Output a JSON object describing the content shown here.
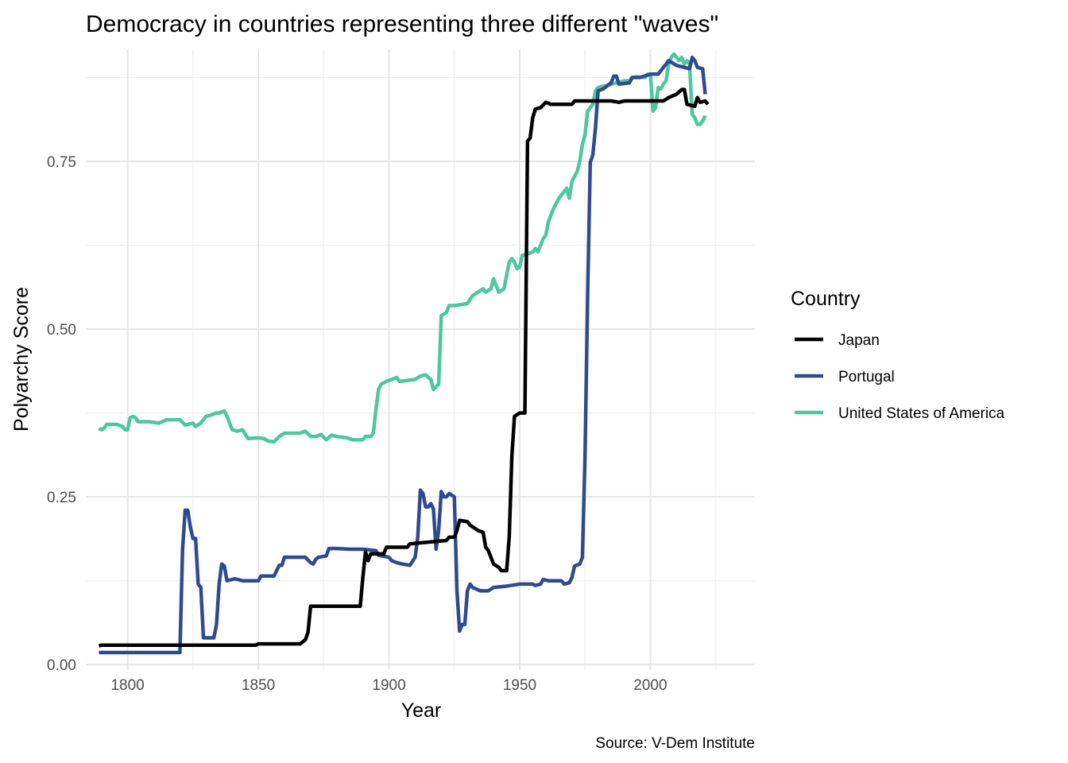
{
  "chart_data": {
    "type": "line",
    "title": "Democracy in countries representing three different \"waves\"",
    "xlabel": "Year",
    "ylabel": "Polyarchy Score",
    "caption": "Source: V-Dem Institute",
    "xlim": [
      1784,
      2040
    ],
    "ylim": [
      -0.008,
      0.917
    ],
    "x_ticks": [
      1800,
      1850,
      1900,
      1950,
      2000
    ],
    "x_tick_labels": [
      "1800",
      "1850",
      "1900",
      "1950",
      "2000"
    ],
    "y_ticks": [
      0,
      0.25,
      0.5,
      0.75
    ],
    "y_tick_labels": [
      "0.00",
      "0.25",
      "0.50",
      "0.75"
    ],
    "grid": true,
    "legend": {
      "title": "Country",
      "position": "right"
    },
    "series": [
      {
        "name": "Japan",
        "color": "#000000",
        "points": [
          [
            1789,
            0.028
          ],
          [
            1790,
            0.029
          ],
          [
            1849,
            0.029
          ],
          [
            1850,
            0.031
          ],
          [
            1866,
            0.031
          ],
          [
            1868,
            0.037
          ],
          [
            1869,
            0.048
          ],
          [
            1870,
            0.087
          ],
          [
            1889,
            0.087
          ],
          [
            1890,
            0.13
          ],
          [
            1891,
            0.168
          ],
          [
            1892,
            0.155
          ],
          [
            1893,
            0.165
          ],
          [
            1898,
            0.165
          ],
          [
            1899,
            0.175
          ],
          [
            1907,
            0.175
          ],
          [
            1908,
            0.18
          ],
          [
            1922,
            0.185
          ],
          [
            1923,
            0.19
          ],
          [
            1925,
            0.19
          ],
          [
            1926,
            0.2
          ],
          [
            1927,
            0.215
          ],
          [
            1930,
            0.213
          ],
          [
            1931,
            0.208
          ],
          [
            1934,
            0.2
          ],
          [
            1936,
            0.197
          ],
          [
            1937,
            0.175
          ],
          [
            1938,
            0.17
          ],
          [
            1940,
            0.15
          ],
          [
            1942,
            0.145
          ],
          [
            1943,
            0.14
          ],
          [
            1945,
            0.14
          ],
          [
            1946,
            0.19
          ],
          [
            1947,
            0.31
          ],
          [
            1948,
            0.37
          ],
          [
            1950,
            0.375
          ],
          [
            1952,
            0.375
          ],
          [
            1953,
            0.78
          ],
          [
            1954,
            0.785
          ],
          [
            1955,
            0.815
          ],
          [
            1956,
            0.828
          ],
          [
            1958,
            0.83
          ],
          [
            1960,
            0.838
          ],
          [
            1962,
            0.835
          ],
          [
            1970,
            0.835
          ],
          [
            1971,
            0.84
          ],
          [
            1985,
            0.84
          ],
          [
            1988,
            0.838
          ],
          [
            1990,
            0.84
          ],
          [
            2005,
            0.84
          ],
          [
            2007,
            0.845
          ],
          [
            2010,
            0.85
          ],
          [
            2012,
            0.857
          ],
          [
            2013,
            0.857
          ],
          [
            2014,
            0.835
          ],
          [
            2017,
            0.832
          ],
          [
            2018,
            0.845
          ],
          [
            2019,
            0.838
          ],
          [
            2021,
            0.84
          ],
          [
            2022,
            0.835
          ]
        ]
      },
      {
        "name": "Portugal",
        "color": "#2f4b8f",
        "points": [
          [
            1789,
            0.018
          ],
          [
            1820,
            0.018
          ],
          [
            1821,
            0.17
          ],
          [
            1822,
            0.23
          ],
          [
            1823,
            0.23
          ],
          [
            1824,
            0.205
          ],
          [
            1825,
            0.188
          ],
          [
            1826,
            0.188
          ],
          [
            1827,
            0.12
          ],
          [
            1828,
            0.115
          ],
          [
            1829,
            0.04
          ],
          [
            1833,
            0.04
          ],
          [
            1834,
            0.06
          ],
          [
            1835,
            0.12
          ],
          [
            1836,
            0.15
          ],
          [
            1837,
            0.147
          ],
          [
            1838,
            0.125
          ],
          [
            1841,
            0.128
          ],
          [
            1844,
            0.125
          ],
          [
            1847,
            0.125
          ],
          [
            1850,
            0.125
          ],
          [
            1851,
            0.132
          ],
          [
            1856,
            0.132
          ],
          [
            1858,
            0.148
          ],
          [
            1859,
            0.148
          ],
          [
            1860,
            0.16
          ],
          [
            1868,
            0.16
          ],
          [
            1870,
            0.152
          ],
          [
            1871,
            0.15
          ],
          [
            1872,
            0.157
          ],
          [
            1873,
            0.16
          ],
          [
            1876,
            0.162
          ],
          [
            1877,
            0.173
          ],
          [
            1880,
            0.173
          ],
          [
            1885,
            0.172
          ],
          [
            1890,
            0.172
          ],
          [
            1895,
            0.17
          ],
          [
            1896,
            0.163
          ],
          [
            1900,
            0.16
          ],
          [
            1901,
            0.155
          ],
          [
            1903,
            0.152
          ],
          [
            1905,
            0.15
          ],
          [
            1908,
            0.148
          ],
          [
            1910,
            0.16
          ],
          [
            1911,
            0.19
          ],
          [
            1912,
            0.26
          ],
          [
            1913,
            0.255
          ],
          [
            1914,
            0.235
          ],
          [
            1915,
            0.235
          ],
          [
            1916,
            0.24
          ],
          [
            1917,
            0.232
          ],
          [
            1918,
            0.172
          ],
          [
            1919,
            0.2
          ],
          [
            1920,
            0.258
          ],
          [
            1921,
            0.25
          ],
          [
            1922,
            0.25
          ],
          [
            1923,
            0.255
          ],
          [
            1925,
            0.25
          ],
          [
            1926,
            0.11
          ],
          [
            1927,
            0.05
          ],
          [
            1928,
            0.06
          ],
          [
            1929,
            0.06
          ],
          [
            1930,
            0.11
          ],
          [
            1931,
            0.12
          ],
          [
            1932,
            0.115
          ],
          [
            1935,
            0.11
          ],
          [
            1938,
            0.11
          ],
          [
            1940,
            0.115
          ],
          [
            1945,
            0.117
          ],
          [
            1950,
            0.12
          ],
          [
            1955,
            0.12
          ],
          [
            1956,
            0.118
          ],
          [
            1958,
            0.12
          ],
          [
            1959,
            0.127
          ],
          [
            1961,
            0.125
          ],
          [
            1966,
            0.125
          ],
          [
            1967,
            0.12
          ],
          [
            1969,
            0.122
          ],
          [
            1970,
            0.13
          ],
          [
            1971,
            0.147
          ],
          [
            1973,
            0.15
          ],
          [
            1974,
            0.16
          ],
          [
            1975,
            0.31
          ],
          [
            1976,
            0.55
          ],
          [
            1977,
            0.748
          ],
          [
            1978,
            0.76
          ],
          [
            1979,
            0.8
          ],
          [
            1980,
            0.855
          ],
          [
            1982,
            0.858
          ],
          [
            1985,
            0.867
          ],
          [
            1986,
            0.877
          ],
          [
            1987,
            0.877
          ],
          [
            1988,
            0.865
          ],
          [
            1992,
            0.867
          ],
          [
            1993,
            0.875
          ],
          [
            1996,
            0.875
          ],
          [
            2000,
            0.88
          ],
          [
            2003,
            0.88
          ],
          [
            2005,
            0.89
          ],
          [
            2007,
            0.9
          ],
          [
            2010,
            0.893
          ],
          [
            2015,
            0.888
          ],
          [
            2016,
            0.905
          ],
          [
            2017,
            0.9
          ],
          [
            2018,
            0.89
          ],
          [
            2019,
            0.889
          ],
          [
            2020,
            0.888
          ],
          [
            2021,
            0.85
          ]
        ]
      },
      {
        "name": "United States of America",
        "color": "#4ec6a0",
        "points": [
          [
            1789,
            0.352
          ],
          [
            1790,
            0.35
          ],
          [
            1791,
            0.352
          ],
          [
            1792,
            0.358
          ],
          [
            1796,
            0.358
          ],
          [
            1798,
            0.355
          ],
          [
            1799,
            0.35
          ],
          [
            1800,
            0.35
          ],
          [
            1801,
            0.368
          ],
          [
            1802,
            0.37
          ],
          [
            1803,
            0.368
          ],
          [
            1804,
            0.362
          ],
          [
            1808,
            0.362
          ],
          [
            1812,
            0.36
          ],
          [
            1815,
            0.365
          ],
          [
            1820,
            0.365
          ],
          [
            1822,
            0.357
          ],
          [
            1825,
            0.36
          ],
          [
            1826,
            0.355
          ],
          [
            1828,
            0.36
          ],
          [
            1830,
            0.37
          ],
          [
            1832,
            0.372
          ],
          [
            1834,
            0.375
          ],
          [
            1835,
            0.375
          ],
          [
            1837,
            0.378
          ],
          [
            1838,
            0.37
          ],
          [
            1840,
            0.35
          ],
          [
            1842,
            0.348
          ],
          [
            1844,
            0.35
          ],
          [
            1846,
            0.337
          ],
          [
            1850,
            0.338
          ],
          [
            1852,
            0.337
          ],
          [
            1854,
            0.333
          ],
          [
            1856,
            0.332
          ],
          [
            1858,
            0.34
          ],
          [
            1860,
            0.345
          ],
          [
            1862,
            0.345
          ],
          [
            1866,
            0.345
          ],
          [
            1868,
            0.348
          ],
          [
            1870,
            0.34
          ],
          [
            1872,
            0.34
          ],
          [
            1874,
            0.343
          ],
          [
            1876,
            0.335
          ],
          [
            1878,
            0.342
          ],
          [
            1880,
            0.34
          ],
          [
            1884,
            0.338
          ],
          [
            1886,
            0.335
          ],
          [
            1888,
            0.335
          ],
          [
            1890,
            0.335
          ],
          [
            1891,
            0.34
          ],
          [
            1893,
            0.34
          ],
          [
            1894,
            0.345
          ],
          [
            1895,
            0.38
          ],
          [
            1896,
            0.41
          ],
          [
            1897,
            0.418
          ],
          [
            1899,
            0.422
          ],
          [
            1901,
            0.425
          ],
          [
            1903,
            0.428
          ],
          [
            1904,
            0.422
          ],
          [
            1910,
            0.425
          ],
          [
            1912,
            0.43
          ],
          [
            1914,
            0.432
          ],
          [
            1916,
            0.425
          ],
          [
            1917,
            0.41
          ],
          [
            1919,
            0.418
          ],
          [
            1920,
            0.52
          ],
          [
            1922,
            0.525
          ],
          [
            1923,
            0.535
          ],
          [
            1925,
            0.535
          ],
          [
            1930,
            0.538
          ],
          [
            1932,
            0.55
          ],
          [
            1934,
            0.555
          ],
          [
            1936,
            0.56
          ],
          [
            1937,
            0.555
          ],
          [
            1939,
            0.56
          ],
          [
            1940,
            0.575
          ],
          [
            1942,
            0.555
          ],
          [
            1944,
            0.56
          ],
          [
            1946,
            0.6
          ],
          [
            1947,
            0.605
          ],
          [
            1948,
            0.6
          ],
          [
            1949,
            0.59
          ],
          [
            1950,
            0.593
          ],
          [
            1951,
            0.61
          ],
          [
            1953,
            0.612
          ],
          [
            1955,
            0.615
          ],
          [
            1956,
            0.62
          ],
          [
            1957,
            0.615
          ],
          [
            1958,
            0.625
          ],
          [
            1959,
            0.635
          ],
          [
            1960,
            0.64
          ],
          [
            1961,
            0.66
          ],
          [
            1962,
            0.67
          ],
          [
            1963,
            0.68
          ],
          [
            1965,
            0.695
          ],
          [
            1966,
            0.7
          ],
          [
            1967,
            0.705
          ],
          [
            1968,
            0.71
          ],
          [
            1969,
            0.695
          ],
          [
            1970,
            0.72
          ],
          [
            1972,
            0.735
          ],
          [
            1973,
            0.75
          ],
          [
            1974,
            0.775
          ],
          [
            1975,
            0.79
          ],
          [
            1976,
            0.825
          ],
          [
            1977,
            0.83
          ],
          [
            1978,
            0.835
          ],
          [
            1979,
            0.855
          ],
          [
            1980,
            0.86
          ],
          [
            1985,
            0.865
          ],
          [
            1990,
            0.87
          ],
          [
            1992,
            0.87
          ],
          [
            1993,
            0.875
          ],
          [
            1995,
            0.876
          ],
          [
            1998,
            0.875
          ],
          [
            1999,
            0.88
          ],
          [
            2000,
            0.88
          ],
          [
            2001,
            0.825
          ],
          [
            2002,
            0.83
          ],
          [
            2003,
            0.86
          ],
          [
            2004,
            0.858
          ],
          [
            2005,
            0.865
          ],
          [
            2006,
            0.87
          ],
          [
            2007,
            0.895
          ],
          [
            2008,
            0.905
          ],
          [
            2009,
            0.91
          ],
          [
            2010,
            0.905
          ],
          [
            2011,
            0.9
          ],
          [
            2012,
            0.905
          ],
          [
            2013,
            0.895
          ],
          [
            2014,
            0.9
          ],
          [
            2015,
            0.895
          ],
          [
            2016,
            0.82
          ],
          [
            2017,
            0.815
          ],
          [
            2018,
            0.805
          ],
          [
            2019,
            0.805
          ],
          [
            2020,
            0.81
          ],
          [
            2021,
            0.818
          ]
        ]
      }
    ]
  }
}
